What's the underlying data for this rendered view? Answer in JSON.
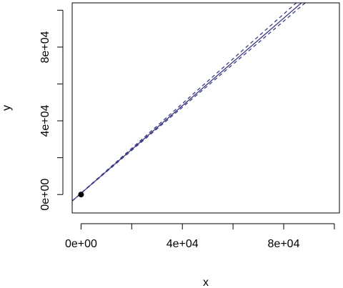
{
  "chart_data": {
    "type": "line",
    "xlabel": "x",
    "ylabel": "y",
    "xlim": [
      -3500,
      102000
    ],
    "ylim": [
      -10000,
      104000
    ],
    "x_ticks": [
      0,
      20000,
      40000,
      60000,
      80000,
      100000
    ],
    "x_tick_labels": [
      "0e+00",
      "4e+04",
      "8e+04"
    ],
    "x_tick_label_values": [
      0,
      40000,
      80000
    ],
    "y_ticks": [
      0,
      20000,
      40000,
      60000,
      80000,
      100000
    ],
    "y_tick_labels": [
      "0e+00",
      "4e+04",
      "8e+04"
    ],
    "y_tick_label_values": [
      0,
      40000,
      80000
    ],
    "grid": false,
    "legend": "none",
    "series": [
      {
        "role": "fit",
        "style": "solid",
        "color": "#3b3b86",
        "points": [
          [
            -3500,
            -3500
          ],
          [
            87000,
            104000
          ]
        ]
      },
      {
        "role": "upper_bound",
        "style": "dashed",
        "color": "#3b3b86",
        "points": [
          [
            -3500,
            -3500
          ],
          [
            85000,
            104000
          ]
        ]
      },
      {
        "role": "lower_bound",
        "style": "dashed",
        "color": "#3b3b86",
        "points": [
          [
            -3500,
            -3500
          ],
          [
            88500,
            104000
          ]
        ]
      }
    ],
    "highlight_points": [
      {
        "x": 0,
        "y": 0,
        "color": "#000000"
      }
    ]
  }
}
